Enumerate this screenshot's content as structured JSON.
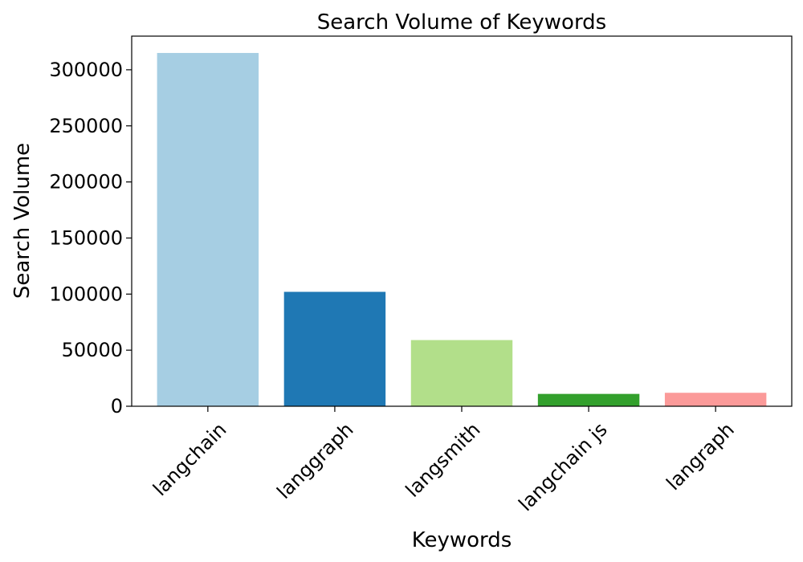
{
  "chart_data": {
    "type": "bar",
    "title": "Search Volume of Keywords",
    "xlabel": "Keywords",
    "ylabel": "Search Volume",
    "categories": [
      "langchain",
      "langgraph",
      "langsmith",
      "langchain js",
      "langraph"
    ],
    "values": [
      315000,
      102000,
      59000,
      11000,
      12000
    ],
    "colors": [
      "#a6cee3",
      "#1f78b4",
      "#b2df8a",
      "#33a02c",
      "#fb9a99"
    ],
    "ylim": [
      0,
      330000
    ],
    "yticks": [
      0,
      50000,
      100000,
      150000,
      200000,
      250000,
      300000
    ],
    "ytick_labels": [
      "0",
      "50000",
      "100000",
      "150000",
      "200000",
      "250000",
      "300000"
    ],
    "grid": false,
    "legend": "none",
    "xtick_rotation_deg": 45
  }
}
